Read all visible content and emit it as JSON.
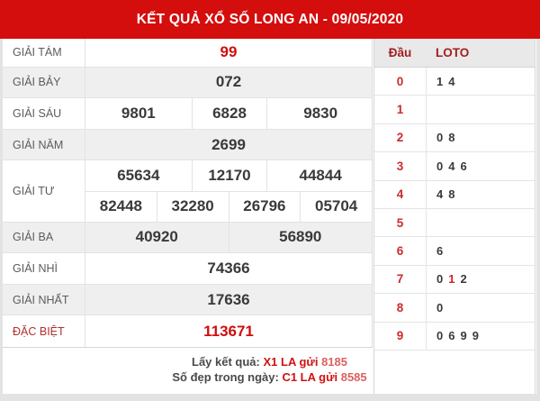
{
  "title": "KẾT QUẢ XỔ SỐ LONG AN - 09/05/2020",
  "colors": {
    "header_red": "#d40d0d",
    "value_red": "#cf0e0e",
    "loto_head_red": "#cc2b2b",
    "column_header_red": "#a02020",
    "sms_number_light_red": "#dc6161",
    "shaded_row": "#efefef",
    "text_dark": "#3a3a3a",
    "label_gray": "#5c5c5c"
  },
  "results": {
    "rows": [
      {
        "label": "GIẢI TÁM",
        "shaded": false,
        "red_label": false,
        "red_values": true,
        "lines": [
          [
            "99"
          ]
        ]
      },
      {
        "label": "GIẢI BẢY",
        "shaded": true,
        "red_label": false,
        "red_values": false,
        "lines": [
          [
            "072"
          ]
        ]
      },
      {
        "label": "GIẢI SÁU",
        "shaded": false,
        "red_label": false,
        "red_values": false,
        "lines": [
          [
            "9801",
            "6828",
            "9830"
          ]
        ]
      },
      {
        "label": "GIẢI NĂM",
        "shaded": true,
        "red_label": false,
        "red_values": false,
        "lines": [
          [
            "2699"
          ]
        ]
      },
      {
        "label": "GIẢI TƯ",
        "shaded": false,
        "red_label": false,
        "red_values": false,
        "lines": [
          [
            "65634",
            "12170",
            "44844"
          ],
          [
            "82448",
            "32280",
            "26796",
            "05704"
          ]
        ]
      },
      {
        "label": "GIẢI BA",
        "shaded": true,
        "red_label": false,
        "red_values": false,
        "lines": [
          [
            "40920",
            "56890"
          ]
        ]
      },
      {
        "label": "GIẢI NHÌ",
        "shaded": false,
        "red_label": false,
        "red_values": false,
        "lines": [
          [
            "74366"
          ]
        ]
      },
      {
        "label": "GIẢI NHẤT",
        "shaded": true,
        "red_label": false,
        "red_values": false,
        "lines": [
          [
            "17636"
          ]
        ]
      },
      {
        "label": "ĐẶC BIỆT",
        "shaded": false,
        "red_label": true,
        "red_values": true,
        "lines": [
          [
            "113671"
          ]
        ]
      }
    ]
  },
  "loto": {
    "head_col": "Đầu",
    "loto_col": "LOTO",
    "rows": [
      {
        "head": "0",
        "digits": [
          {
            "d": "1",
            "red": false
          },
          {
            "d": "4",
            "red": false
          }
        ]
      },
      {
        "head": "1",
        "digits": []
      },
      {
        "head": "2",
        "digits": [
          {
            "d": "0",
            "red": false
          },
          {
            "d": "8",
            "red": false
          }
        ]
      },
      {
        "head": "3",
        "digits": [
          {
            "d": "0",
            "red": false
          },
          {
            "d": "4",
            "red": false
          },
          {
            "d": "6",
            "red": false
          }
        ]
      },
      {
        "head": "4",
        "digits": [
          {
            "d": "4",
            "red": false
          },
          {
            "d": "8",
            "red": false
          }
        ]
      },
      {
        "head": "5",
        "digits": []
      },
      {
        "head": "6",
        "digits": [
          {
            "d": "6",
            "red": false
          }
        ]
      },
      {
        "head": "7",
        "digits": [
          {
            "d": "0",
            "red": false
          },
          {
            "d": "1",
            "red": true
          },
          {
            "d": "2",
            "red": false
          }
        ]
      },
      {
        "head": "8",
        "digits": [
          {
            "d": "0",
            "red": false
          }
        ]
      },
      {
        "head": "9",
        "digits": [
          {
            "d": "0",
            "red": false
          },
          {
            "d": "6",
            "red": false
          },
          {
            "d": "9",
            "red": false
          },
          {
            "d": "9",
            "red": false
          }
        ]
      }
    ]
  },
  "footer": {
    "line1": {
      "prefix": "Lấy kết quả:",
      "code": "X1 LA gửi",
      "number": "8185"
    },
    "line2": {
      "prefix": "Số đẹp trong ngày:",
      "code": "C1 LA gửi",
      "number": "8585"
    }
  }
}
